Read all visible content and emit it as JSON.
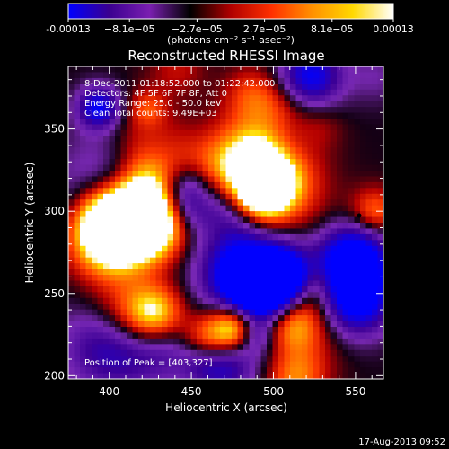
{
  "chart_data": {
    "type": "heatmap",
    "title": "Reconstructed RHESSI Image",
    "xlabel": "Heliocentric X (arcsec)",
    "ylabel": "Heliocentric Y (arcsec)",
    "xlim": [
      375,
      567
    ],
    "ylim": [
      198,
      388
    ],
    "xticks": [
      400,
      450,
      500,
      550
    ],
    "yticks": [
      200,
      250,
      300,
      350
    ],
    "colorbar": {
      "range": [
        -0.00013,
        0.00013
      ],
      "tick_labels": [
        "-0.00013",
        "−8.1e−05",
        "−2.7e−05",
        "2.7e−05",
        "8.1e−05",
        "0.00013"
      ],
      "tick_values": [
        -0.00013,
        -8.1e-05,
        -2.7e-05,
        2.7e-05,
        8.1e-05,
        0.00013
      ],
      "units": "(photons cm⁻² s⁻¹ asec⁻²)",
      "colors": [
        "#0000ff",
        "#3a0090",
        "#7a1fb0",
        "#000000",
        "#b00000",
        "#ff3000",
        "#ff9000",
        "#ffd800",
        "#ffffff"
      ]
    },
    "annotations": [
      "8-Dec-2011 01:18:52.000 to 01:22:42.000",
      "Detectors: 4F 5F 6F 7F 8F, Att 0",
      "Energy Range: 25.0 - 50.0 keV",
      "Clean     Total counts: 9.49E+03",
      "Position of Peak = [403,327]"
    ],
    "peak": [
      403,
      327
    ],
    "footer": "17-Aug-2013 09:52"
  }
}
